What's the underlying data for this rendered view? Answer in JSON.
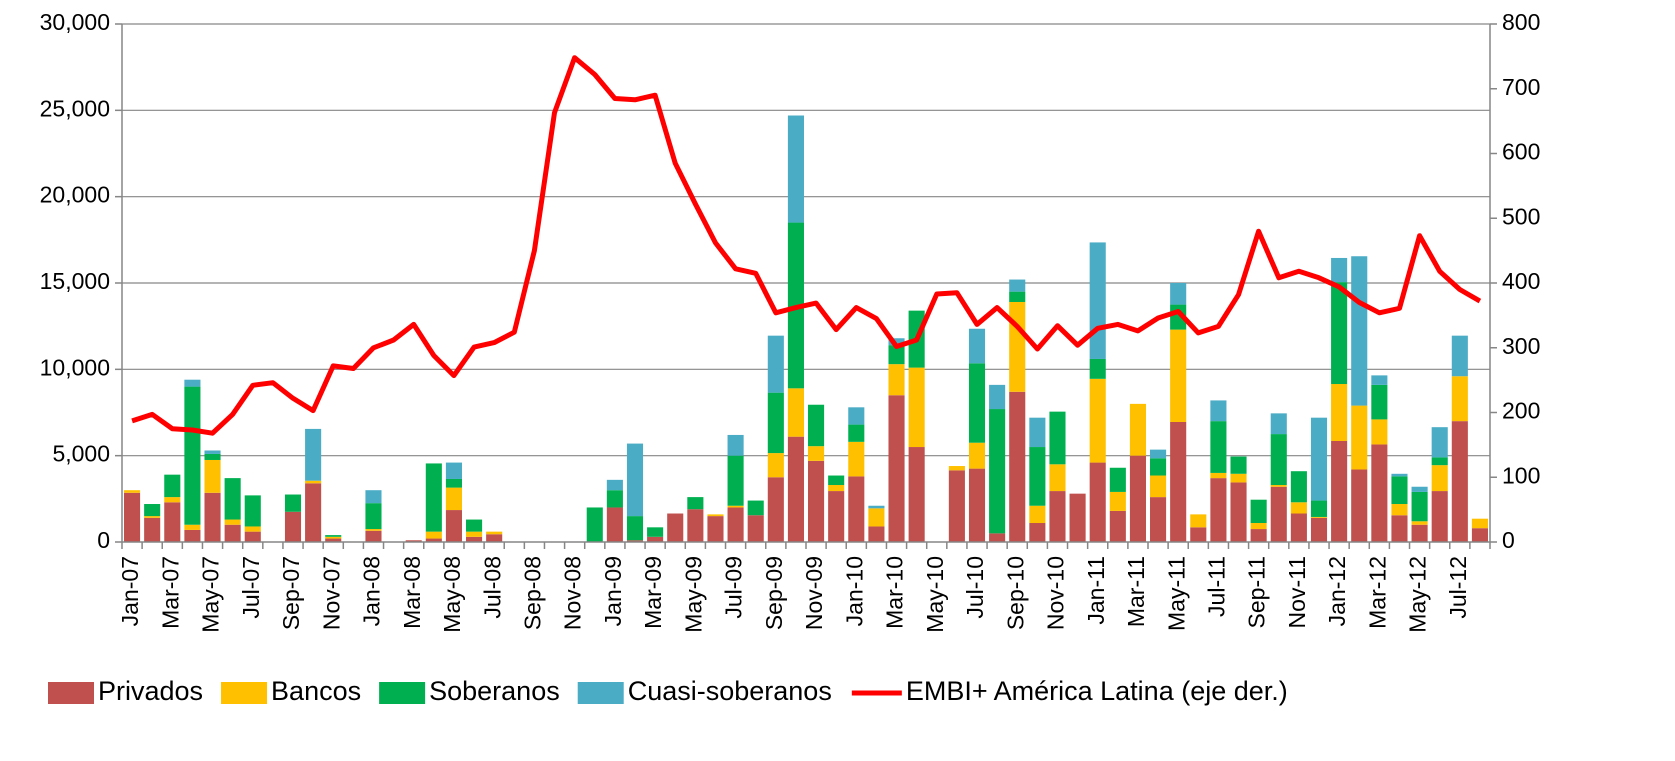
{
  "chart_data": {
    "type": "bar",
    "stacked": true,
    "categories": [
      "Jan-07",
      null,
      "Mar-07",
      null,
      "May-07",
      null,
      "Jul-07",
      null,
      "Sep-07",
      null,
      "Nov-07",
      null,
      "Jan-08",
      null,
      "Mar-08",
      null,
      "May-08",
      null,
      "Jul-08",
      null,
      "Sep-08",
      null,
      "Nov-08",
      null,
      "Jan-09",
      null,
      "Mar-09",
      null,
      "May-09",
      null,
      "Jul-09",
      null,
      "Sep-09",
      null,
      "Nov-09",
      null,
      "Jan-10",
      null,
      "Mar-10",
      null,
      "May-10",
      null,
      "Jul-10",
      null,
      "Sep-10",
      null,
      "Nov-10",
      null,
      "Jan-11",
      null,
      "Mar-11",
      null,
      "May-11",
      null,
      "Jul-11",
      null,
      "Sep-11",
      null,
      "Nov-11",
      null,
      "Jan-12",
      null,
      "Mar-12",
      null,
      "May-12",
      null,
      "Jul-12",
      null
    ],
    "series": [
      {
        "name": "Privados",
        "color": "#c0504d",
        "values": [
          2850,
          1400,
          2300,
          700,
          2850,
          1000,
          600,
          0,
          1750,
          3400,
          200,
          0,
          650,
          0,
          100,
          200,
          1850,
          300,
          450,
          0,
          0,
          0,
          0,
          0,
          2000,
          100,
          300,
          1650,
          1900,
          1500,
          2000,
          1550,
          3750,
          6100,
          4700,
          2950,
          3800,
          900,
          8500,
          5500,
          0,
          4150,
          4250,
          500,
          8700,
          1100,
          2950,
          2800,
          4600,
          1800,
          5000,
          2600,
          6950,
          850,
          3700,
          3450,
          750,
          3200,
          1650,
          1400,
          5850,
          4200,
          5650,
          1550,
          1000,
          2950,
          7000,
          800
        ]
      },
      {
        "name": "Bancos",
        "color": "#ffc000",
        "values": [
          150,
          100,
          300,
          300,
          1900,
          300,
          300,
          0,
          0,
          150,
          100,
          0,
          100,
          0,
          0,
          400,
          1300,
          300,
          150,
          0,
          0,
          0,
          0,
          0,
          0,
          0,
          0,
          0,
          0,
          100,
          100,
          0,
          1400,
          2800,
          850,
          350,
          2000,
          1050,
          1800,
          4600,
          0,
          250,
          1500,
          0,
          5200,
          1000,
          1550,
          0,
          4850,
          1100,
          3000,
          1250,
          5350,
          750,
          300,
          500,
          350,
          100,
          650,
          50,
          3300,
          3700,
          1450,
          650,
          200,
          1500,
          2600,
          550
        ]
      },
      {
        "name": "Soberanos",
        "color": "#00b050",
        "values": [
          0,
          700,
          1300,
          8000,
          350,
          2400,
          1800,
          0,
          1000,
          0,
          100,
          0,
          1500,
          0,
          0,
          3950,
          500,
          700,
          0,
          0,
          0,
          0,
          0,
          2000,
          1000,
          1400,
          550,
          0,
          700,
          0,
          2900,
          850,
          3500,
          9600,
          2400,
          550,
          1000,
          0,
          1100,
          3300,
          0,
          0,
          4600,
          7200,
          600,
          3400,
          3050,
          0,
          1150,
          1400,
          0,
          1000,
          1450,
          0,
          3000,
          1000,
          1350,
          2950,
          1800,
          950,
          5900,
          0,
          2000,
          1600,
          1700,
          450,
          0,
          0
        ]
      },
      {
        "name": "Cuasi-soberanos",
        "color": "#4bacc6",
        "values": [
          0,
          0,
          0,
          400,
          200,
          0,
          0,
          0,
          0,
          3000,
          0,
          0,
          750,
          0,
          0,
          0,
          950,
          0,
          0,
          0,
          0,
          0,
          0,
          0,
          600,
          4200,
          0,
          0,
          0,
          0,
          1200,
          0,
          3300,
          6200,
          0,
          0,
          1000,
          150,
          400,
          0,
          0,
          0,
          2000,
          1400,
          700,
          1700,
          0,
          0,
          6750,
          0,
          0,
          500,
          1250,
          0,
          1200,
          0,
          0,
          1200,
          0,
          4800,
          1400,
          8650,
          550,
          150,
          300,
          1750,
          2350,
          0
        ]
      },
      {
        "name": "EMBI+ América Latina (eje der.)",
        "color": "#ff0000",
        "type": "line",
        "axis": "y2",
        "values": [
          187,
          197,
          175,
          173,
          168,
          197,
          242,
          246,
          222,
          203,
          272,
          268,
          300,
          312,
          336,
          288,
          257,
          301,
          308,
          324,
          450,
          663,
          748,
          722,
          685,
          683,
          690,
          585,
          522,
          462,
          422,
          415,
          354,
          362,
          369,
          328,
          362,
          345,
          302,
          312,
          383,
          385,
          336,
          362,
          333,
          298,
          334,
          304,
          330,
          336,
          326,
          346,
          356,
          323,
          333,
          382,
          480,
          408,
          418,
          408,
          394,
          370,
          354,
          361,
          473,
          418,
          390,
          372
        ]
      }
    ],
    "ylim": [
      0,
      30000
    ],
    "yticks": [
      0,
      {
        "value": 5000,
        "label": "5,000"
      },
      {
        "value": 10000,
        "label": "10,000"
      },
      {
        "value": 15000,
        "label": "15,000"
      },
      {
        "value": 20000,
        "label": "20,000"
      },
      {
        "value": 25000,
        "label": "25,000"
      },
      {
        "value": 30000,
        "label": "30,000"
      }
    ],
    "y2lim": [
      0,
      800
    ],
    "y2ticks": [
      0,
      100,
      200,
      300,
      400,
      500,
      600,
      700,
      800
    ],
    "grid": true,
    "legend": "bottom"
  }
}
